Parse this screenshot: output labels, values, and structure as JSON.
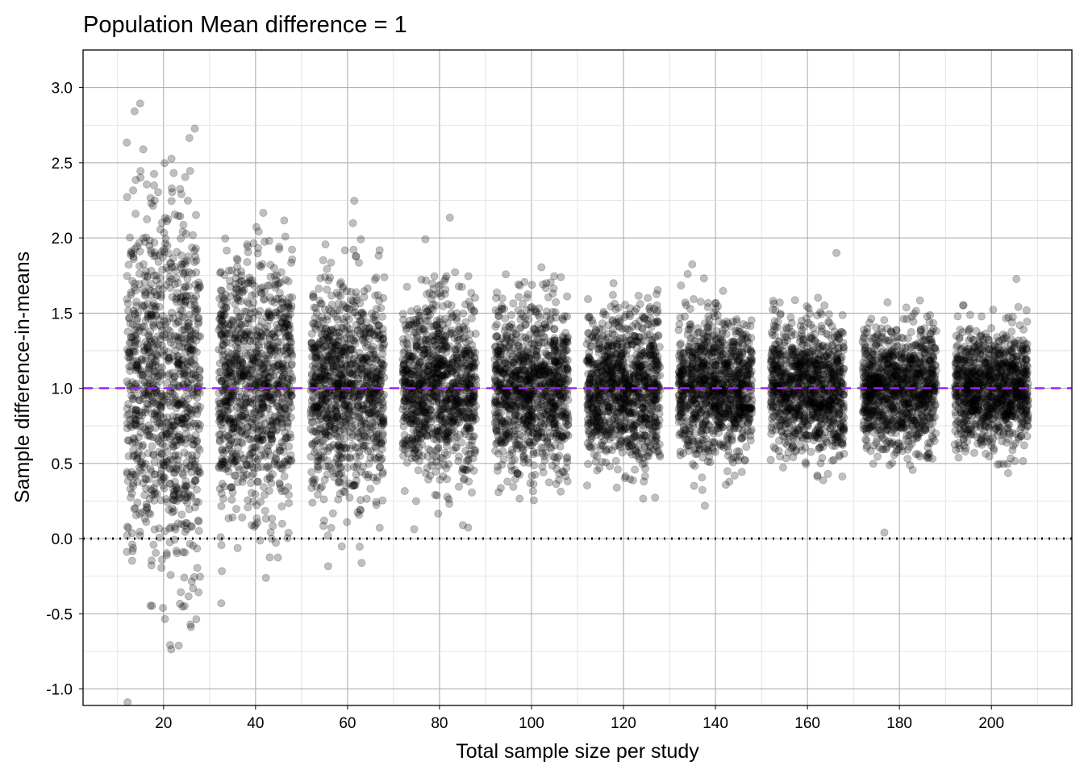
{
  "chart_data": {
    "type": "scatter",
    "title": "Population Mean difference = 1",
    "xlabel": "Total sample size per study",
    "ylabel": "Sample difference-in-means",
    "xlim": [
      2.5,
      217.5
    ],
    "ylim": [
      -1.11,
      3.25
    ],
    "x_ticks": [
      20,
      40,
      60,
      80,
      100,
      120,
      140,
      160,
      180,
      200
    ],
    "x_tick_labels": [
      "20",
      "40",
      "60",
      "80",
      "100",
      "120",
      "140",
      "160",
      "180",
      "200"
    ],
    "y_ticks": [
      -1.0,
      -0.5,
      0.0,
      0.5,
      1.0,
      1.5,
      2.0,
      2.5,
      3.0
    ],
    "y_tick_labels": [
      "-1.0",
      "-0.5",
      "0.0",
      "0.5",
      "1.0",
      "1.5",
      "2.0",
      "2.5",
      "3.0"
    ],
    "grid": true,
    "reference_lines": [
      {
        "y": 1.0,
        "style": "dashed",
        "color": "#a020f0"
      },
      {
        "y": 0.0,
        "style": "dotted",
        "color": "#000000"
      }
    ],
    "groups": {
      "sample_size": [
        20,
        40,
        60,
        80,
        100,
        120,
        140,
        160,
        180,
        200
      ],
      "mean": [
        1,
        1,
        1,
        1,
        1,
        1,
        1,
        1,
        1,
        1
      ],
      "approx_sd_of_estimates": [
        0.6,
        0.43,
        0.35,
        0.3,
        0.27,
        0.25,
        0.23,
        0.21,
        0.2,
        0.19
      ],
      "studies_per_group": 1000,
      "horizontal_jitter": 8
    },
    "point_color": "#000000",
    "point_alpha": 0.25
  }
}
